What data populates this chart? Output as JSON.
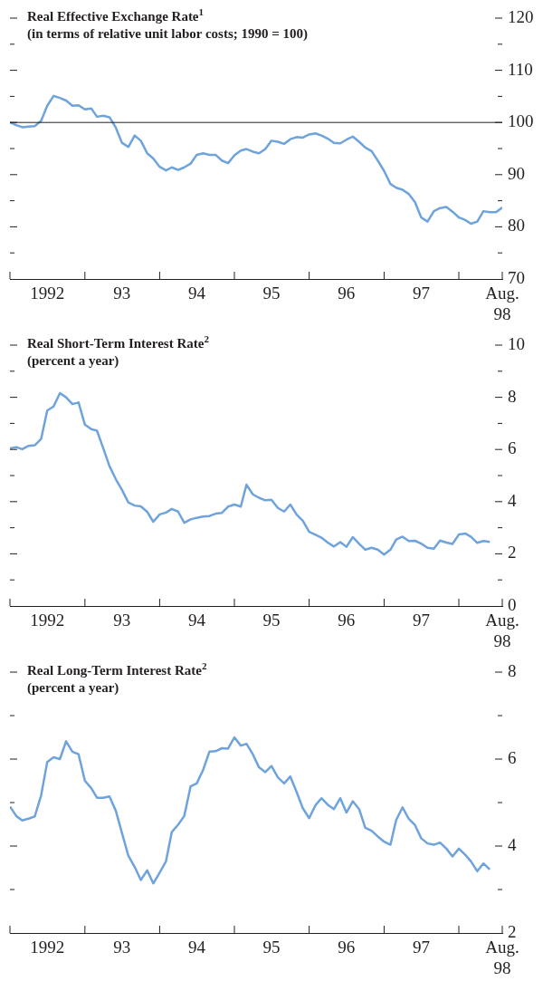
{
  "chart_data": [
    {
      "type": "line",
      "title": "Real Effective Exchange Rate$^{1}$",
      "subtitle": "(in terms of relative unit labor costs; 1990 = 100)",
      "x": [
        "1992-01",
        "1992-02",
        "1992-03",
        "1992-04",
        "1992-05",
        "1992-06",
        "1992-07",
        "1992-08",
        "1992-09",
        "1992-10",
        "1992-11",
        "1992-12",
        "1993-01",
        "1993-02",
        "1993-03",
        "1993-04",
        "1993-05",
        "1993-06",
        "1993-07",
        "1993-08",
        "1993-09",
        "1993-10",
        "1993-11",
        "1993-12",
        "1994-01",
        "1994-02",
        "1994-03",
        "1994-04",
        "1994-05",
        "1994-06",
        "1994-07",
        "1994-08",
        "1994-09",
        "1994-10",
        "1994-11",
        "1994-12",
        "1995-01",
        "1995-02",
        "1995-03",
        "1995-04",
        "1995-05",
        "1995-06",
        "1995-07",
        "1995-08",
        "1995-09",
        "1995-10",
        "1995-11",
        "1995-12",
        "1996-01",
        "1996-02",
        "1996-03",
        "1996-04",
        "1996-05",
        "1996-06",
        "1996-07",
        "1996-08",
        "1996-09",
        "1996-10",
        "1996-11",
        "1996-12",
        "1997-01",
        "1997-02",
        "1997-03",
        "1997-04",
        "1997-05",
        "1997-06",
        "1997-07",
        "1997-08",
        "1997-09",
        "1997-10",
        "1997-11",
        "1997-12",
        "1998-01",
        "1998-02",
        "1998-03",
        "1998-04",
        "1998-05",
        "1998-06",
        "1998-07",
        "1998-08"
      ],
      "series": [
        {
          "color": "#6fa3dc",
          "values": [
            100,
            99.5,
            99.1,
            99.2,
            99.3,
            100.3,
            103.2,
            105.1,
            104.7,
            104.2,
            103.2,
            103.3,
            102.5,
            102.7,
            101.1,
            101.3,
            101,
            99,
            96.1,
            95.3,
            97.5,
            96.5,
            94.1,
            93.1,
            91.5,
            90.8,
            91.4,
            90.9,
            91.4,
            92.1,
            93.8,
            94.1,
            93.8,
            93.8,
            92.7,
            92.2,
            93.7,
            94.6,
            94.9,
            94.4,
            94.1,
            94.9,
            96.5,
            96.3,
            95.9,
            96.8,
            97.2,
            97.1,
            97.7,
            97.9,
            97.5,
            96.9,
            96.1,
            96,
            96.7,
            97.3,
            96.3,
            95.2,
            94.5,
            92.7,
            90.7,
            88.2,
            87.5,
            87.1,
            86.3,
            84.7,
            81.8,
            81,
            83,
            83.6,
            83.8,
            82.9,
            81.8,
            81.3,
            80.6,
            81,
            83,
            82.8,
            82.8,
            83.7
          ]
        }
      ],
      "xlim": [
        "1992-01",
        "1998-08"
      ],
      "xticks": [
        {
          "value": "1992-01",
          "label": null
        },
        {
          "value": "1992-07",
          "label": "1992"
        },
        {
          "value": "1993-01",
          "label": null
        },
        {
          "value": "1993-07",
          "label": "93"
        },
        {
          "value": "1994-01",
          "label": null
        },
        {
          "value": "1994-07",
          "label": "94"
        },
        {
          "value": "1995-01",
          "label": null
        },
        {
          "value": "1995-07",
          "label": "95"
        },
        {
          "value": "1996-01",
          "label": null
        },
        {
          "value": "1996-07",
          "label": "96"
        },
        {
          "value": "1997-01",
          "label": null
        },
        {
          "value": "1997-07",
          "label": "97"
        },
        {
          "value": "1998-01",
          "label": null
        },
        {
          "value": "1998-08",
          "label": "Aug. 98"
        }
      ],
      "ylim": [
        70,
        120
      ],
      "yticks": [
        70,
        {
          "value": 75,
          "label": null
        },
        80,
        {
          "value": 85,
          "label": null
        },
        90,
        {
          "value": 95,
          "label": null
        },
        100,
        {
          "value": 105,
          "label": null
        },
        110,
        {
          "value": 115,
          "label": null
        },
        120
      ],
      "ref_lines": [
        {
          "axis": "y",
          "value": 100,
          "color": "#231f20"
        }
      ],
      "grid": false,
      "legend": false
    },
    {
      "type": "line",
      "title": "Real Short-Term Interest Rate$^{2}$",
      "subtitle": "(percent a year)",
      "x": [
        "1992-01",
        "1992-02",
        "1992-03",
        "1992-04",
        "1992-05",
        "1992-06",
        "1992-07",
        "1992-08",
        "1992-09",
        "1992-10",
        "1992-11",
        "1992-12",
        "1993-01",
        "1993-02",
        "1993-03",
        "1993-04",
        "1993-05",
        "1993-06",
        "1993-07",
        "1993-08",
        "1993-09",
        "1993-10",
        "1993-11",
        "1993-12",
        "1994-01",
        "1994-02",
        "1994-03",
        "1994-04",
        "1994-05",
        "1994-06",
        "1994-07",
        "1994-08",
        "1994-09",
        "1994-10",
        "1994-11",
        "1994-12",
        "1995-01",
        "1995-02",
        "1995-03",
        "1995-04",
        "1995-05",
        "1995-06",
        "1995-07",
        "1995-08",
        "1995-09",
        "1995-10",
        "1995-11",
        "1995-12",
        "1996-01",
        "1996-02",
        "1996-03",
        "1996-04",
        "1996-05",
        "1996-06",
        "1996-07",
        "1996-08",
        "1996-09",
        "1996-10",
        "1996-11",
        "1996-12",
        "1997-01",
        "1997-02",
        "1997-03",
        "1997-04",
        "1997-05",
        "1997-06",
        "1997-07",
        "1997-08",
        "1997-09",
        "1997-10",
        "1997-11",
        "1997-12",
        "1998-01",
        "1998-02",
        "1998-03",
        "1998-04",
        "1998-05",
        "1998-06"
      ],
      "series": [
        {
          "color": "#6fa3dc",
          "values": [
            6.04,
            6.09,
            6.01,
            6.14,
            6.16,
            6.4,
            7.49,
            7.65,
            8.16,
            8,
            7.74,
            7.8,
            6.95,
            6.78,
            6.72,
            6.04,
            5.36,
            4.86,
            4.45,
            3.97,
            3.85,
            3.82,
            3.61,
            3.23,
            3.51,
            3.58,
            3.72,
            3.62,
            3.19,
            3.32,
            3.38,
            3.43,
            3.45,
            3.54,
            3.57,
            3.81,
            3.89,
            3.81,
            4.65,
            4.28,
            4.15,
            4.05,
            4.07,
            3.76,
            3.62,
            3.89,
            3.5,
            3.27,
            2.84,
            2.73,
            2.62,
            2.43,
            2.28,
            2.45,
            2.27,
            2.64,
            2.38,
            2.16,
            2.23,
            2.16,
            1.97,
            2.16,
            2.55,
            2.66,
            2.49,
            2.5,
            2.39,
            2.23,
            2.2,
            2.51,
            2.43,
            2.38,
            2.74,
            2.78,
            2.65,
            2.42,
            2.49,
            2.46
          ]
        }
      ],
      "xlim": [
        "1992-01",
        "1998-08"
      ],
      "xticks": [
        {
          "value": "1992-01",
          "label": null
        },
        {
          "value": "1992-07",
          "label": "1992"
        },
        {
          "value": "1993-01",
          "label": null
        },
        {
          "value": "1993-07",
          "label": "93"
        },
        {
          "value": "1994-01",
          "label": null
        },
        {
          "value": "1994-07",
          "label": "94"
        },
        {
          "value": "1995-01",
          "label": null
        },
        {
          "value": "1995-07",
          "label": "95"
        },
        {
          "value": "1996-01",
          "label": null
        },
        {
          "value": "1996-07",
          "label": "96"
        },
        {
          "value": "1997-01",
          "label": null
        },
        {
          "value": "1997-07",
          "label": "97"
        },
        {
          "value": "1998-01",
          "label": null
        },
        {
          "value": "1998-08",
          "label": "Aug. 98"
        }
      ],
      "ylim": [
        0,
        10
      ],
      "yticks": [
        0,
        {
          "value": 1,
          "label": null
        },
        2,
        {
          "value": 3,
          "label": null
        },
        4,
        {
          "value": 5,
          "label": null
        },
        6,
        {
          "value": 7,
          "label": null
        },
        8,
        {
          "value": 9,
          "label": null
        },
        10
      ],
      "grid": false,
      "legend": false
    },
    {
      "type": "line",
      "title": "Real Long-Term Interest Rate$^{2}$",
      "subtitle": "(percent a year)",
      "x": [
        "1992-01",
        "1992-02",
        "1992-03",
        "1992-04",
        "1992-05",
        "1992-06",
        "1992-07",
        "1992-08",
        "1992-09",
        "1992-10",
        "1992-11",
        "1992-12",
        "1993-01",
        "1993-02",
        "1993-03",
        "1993-04",
        "1993-05",
        "1993-06",
        "1993-07",
        "1993-08",
        "1993-09",
        "1993-10",
        "1993-11",
        "1993-12",
        "1994-01",
        "1994-02",
        "1994-03",
        "1994-04",
        "1994-05",
        "1994-06",
        "1994-07",
        "1994-08",
        "1994-09",
        "1994-10",
        "1994-11",
        "1994-12",
        "1995-01",
        "1995-02",
        "1995-03",
        "1995-04",
        "1995-05",
        "1995-06",
        "1995-07",
        "1995-08",
        "1995-09",
        "1995-10",
        "1995-11",
        "1995-12",
        "1996-01",
        "1996-02",
        "1996-03",
        "1996-04",
        "1996-05",
        "1996-06",
        "1996-07",
        "1996-08",
        "1996-09",
        "1996-10",
        "1996-11",
        "1996-12",
        "1997-01",
        "1997-02",
        "1997-03",
        "1997-04",
        "1997-05",
        "1997-06",
        "1997-07",
        "1997-08",
        "1997-09",
        "1997-10",
        "1997-11",
        "1997-12",
        "1998-01",
        "1998-02",
        "1998-03",
        "1998-04",
        "1998-05",
        "1998-06"
      ],
      "series": [
        {
          "color": "#6fa3dc",
          "values": [
            4.91,
            4.69,
            4.59,
            4.63,
            4.68,
            5.16,
            5.93,
            6.04,
            6,
            6.41,
            6.17,
            6.11,
            5.5,
            5.33,
            5.11,
            5.11,
            5.14,
            4.81,
            4.3,
            3.78,
            3.52,
            3.22,
            3.44,
            3.14,
            3.39,
            3.65,
            4.32,
            4.49,
            4.69,
            5.37,
            5.44,
            5.75,
            6.17,
            6.18,
            6.25,
            6.24,
            6.5,
            6.31,
            6.35,
            6.11,
            5.81,
            5.7,
            5.84,
            5.58,
            5.44,
            5.6,
            5.24,
            4.87,
            4.64,
            4.94,
            5.1,
            4.95,
            4.85,
            5.1,
            4.77,
            5.03,
            4.85,
            4.42,
            4.35,
            4.22,
            4.1,
            4.03,
            4.6,
            4.89,
            4.63,
            4.48,
            4.18,
            4.06,
            4.03,
            4.08,
            3.94,
            3.76,
            3.94,
            3.8,
            3.65,
            3.42,
            3.6,
            3.46
          ]
        }
      ],
      "xlim": [
        "1992-01",
        "1998-08"
      ],
      "xticks": [
        {
          "value": "1992-01",
          "label": null
        },
        {
          "value": "1992-07",
          "label": "1992"
        },
        {
          "value": "1993-01",
          "label": null
        },
        {
          "value": "1993-07",
          "label": "93"
        },
        {
          "value": "1994-01",
          "label": null
        },
        {
          "value": "1994-07",
          "label": "94"
        },
        {
          "value": "1995-01",
          "label": null
        },
        {
          "value": "1995-07",
          "label": "95"
        },
        {
          "value": "1996-01",
          "label": null
        },
        {
          "value": "1996-07",
          "label": "96"
        },
        {
          "value": "1997-01",
          "label": null
        },
        {
          "value": "1997-07",
          "label": "97"
        },
        {
          "value": "1998-01",
          "label": null
        },
        {
          "value": "1998-08",
          "label": "Aug. 98"
        }
      ],
      "ylim": [
        2,
        8
      ],
      "yticks": [
        2,
        {
          "value": 3,
          "label": null
        },
        4,
        {
          "value": 5,
          "label": null
        },
        6,
        {
          "value": 7,
          "label": null
        },
        8
      ],
      "grid": false,
      "legend": false
    }
  ]
}
